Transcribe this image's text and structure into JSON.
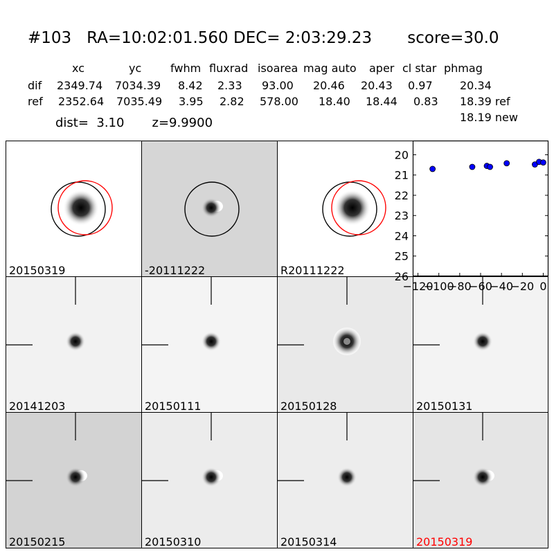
{
  "title": "#103   RA=10:02:01.560 DEC= 2:03:29.23       score=30.0",
  "table": {
    "columns": [
      "xc",
      "yc",
      "fwhm",
      "fluxrad",
      "isoarea",
      "mag auto",
      "aper",
      "cl star",
      "phmag"
    ],
    "rows": [
      {
        "label": "dif",
        "values": [
          "2349.74",
          "7034.39",
          "8.42",
          "2.33",
          "93.00",
          "20.46",
          "20.43",
          "0.97",
          "20.34"
        ]
      },
      {
        "label": "ref",
        "values": [
          "2352.64",
          "7035.49",
          "3.95",
          "2.82",
          "578.00",
          "18.40",
          "18.44",
          "0.83",
          "18.39 ref"
        ]
      }
    ],
    "extra_phmag": "18.19 new"
  },
  "dist_line": "dist=  3.10       z=9.9900",
  "panels": [
    {
      "label": "20150319",
      "bg": "#ffffff",
      "label_color": "#000000"
    },
    {
      "label": "-20111222",
      "bg": "#d6d6d6",
      "label_color": "#000000"
    },
    {
      "label": "R20111222",
      "bg": "#ffffff",
      "label_color": "#000000"
    },
    {
      "label": "20141203",
      "bg": "#f2f2f2",
      "label_color": "#000000"
    },
    {
      "label": "20150111",
      "bg": "#f4f4f4",
      "label_color": "#000000"
    },
    {
      "label": "20150128",
      "bg": "#e9e9e9",
      "label_color": "#000000"
    },
    {
      "label": "20150131",
      "bg": "#f3f3f3",
      "label_color": "#000000"
    },
    {
      "label": "20150215",
      "bg": "#d3d3d3",
      "label_color": "#000000"
    },
    {
      "label": "20150310",
      "bg": "#ececec",
      "label_color": "#000000"
    },
    {
      "label": "20150314",
      "bg": "#ededed",
      "label_color": "#000000"
    },
    {
      "label": "20150319",
      "bg": "#e5e5e5",
      "label_color": "#ff0000"
    }
  ],
  "chart_data": {
    "type": "scatter",
    "title": "",
    "xlabel": "",
    "ylabel": "",
    "xlim": [
      -125,
      5
    ],
    "ylim": [
      26,
      19.3
    ],
    "y_inverted": true,
    "x_ticks": [
      "−120",
      "−100",
      "−80",
      "−60",
      "−40",
      "−20",
      "0"
    ],
    "x_tick_values": [
      -120,
      -100,
      -80,
      -60,
      -40,
      -20,
      0
    ],
    "y_ticks": [
      "20",
      "21",
      "22",
      "23",
      "24",
      "25",
      "26"
    ],
    "y_tick_values": [
      20,
      21,
      22,
      23,
      24,
      25,
      26
    ],
    "point_color": "#0000ff",
    "x": [
      -106,
      -68,
      -54,
      -51,
      -35,
      -8,
      -4,
      0
    ],
    "y": [
      20.7,
      20.6,
      20.55,
      20.6,
      20.42,
      20.48,
      20.35,
      20.38
    ]
  }
}
